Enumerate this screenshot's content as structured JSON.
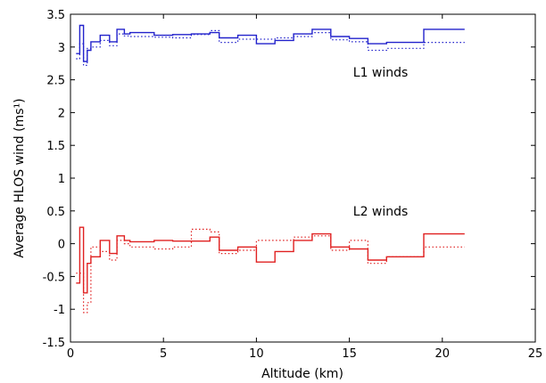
{
  "chart_data": {
    "type": "line",
    "xlabel": "Altitude (km)",
    "ylabel": "Average HLOS wind (ms¹)",
    "xlim": [
      0,
      25
    ],
    "ylim": [
      -1.5,
      3.5
    ],
    "xticks": [
      0,
      5,
      10,
      15,
      20,
      25
    ],
    "yticks": [
      -1.5,
      -1,
      -0.5,
      0,
      0.5,
      1,
      1.5,
      2,
      2.5,
      3,
      3.5
    ],
    "xtick_labels": [
      "0",
      "5",
      "10",
      "15",
      "20",
      "25"
    ],
    "ytick_labels": [
      "-1.5",
      "-1",
      "-0.5",
      "0",
      "0.5",
      "1",
      "1.5",
      "2",
      "2.5",
      "3",
      "3.5"
    ],
    "grid": false,
    "annotations": [
      {
        "text": "L1 winds",
        "x": 15.2,
        "y": 2.55
      },
      {
        "text": "L2 winds",
        "x": 15.2,
        "y": 0.43
      }
    ],
    "series": [
      {
        "group": "L1",
        "style": "solid",
        "color": "#2222cc",
        "x": [
          0.3,
          0.5,
          0.5,
          0.7,
          0.7,
          0.9,
          0.9,
          1.1,
          1.1,
          1.6,
          1.6,
          2.1,
          2.1,
          2.5,
          2.5,
          2.9,
          2.9,
          3.2,
          3.2,
          4.5,
          4.5,
          5.5,
          5.5,
          6.5,
          6.5,
          7.5,
          7.5,
          8.0,
          8.0,
          9.0,
          9.0,
          10.0,
          10.0,
          11.0,
          11.0,
          12.0,
          12.0,
          13.0,
          13.0,
          14.0,
          14.0,
          15.0,
          15.0,
          16.0,
          16.0,
          17.0,
          17.0,
          19.0,
          19.0,
          21.2
        ],
        "y": [
          2.9,
          2.9,
          3.33,
          3.33,
          2.78,
          2.78,
          2.95,
          2.95,
          3.08,
          3.08,
          3.18,
          3.18,
          3.08,
          3.08,
          3.27,
          3.27,
          3.2,
          3.2,
          3.22,
          3.22,
          3.18,
          3.18,
          3.19,
          3.19,
          3.2,
          3.2,
          3.22,
          3.22,
          3.14,
          3.14,
          3.18,
          3.18,
          3.05,
          3.05,
          3.1,
          3.1,
          3.2,
          3.2,
          3.27,
          3.27,
          3.16,
          3.16,
          3.13,
          3.13,
          3.05,
          3.05,
          3.07,
          3.07,
          3.27,
          3.27
        ]
      },
      {
        "group": "L1",
        "style": "dotted",
        "color": "#2222cc",
        "x": [
          0.3,
          0.5,
          0.5,
          0.7,
          0.7,
          0.9,
          0.9,
          1.1,
          1.1,
          1.6,
          1.6,
          2.1,
          2.1,
          2.5,
          2.5,
          2.9,
          2.9,
          3.2,
          3.2,
          4.5,
          4.5,
          5.5,
          5.5,
          6.5,
          6.5,
          7.5,
          7.5,
          8.0,
          8.0,
          9.0,
          9.0,
          10.0,
          10.0,
          11.0,
          11.0,
          12.0,
          12.0,
          13.0,
          13.0,
          14.0,
          14.0,
          15.0,
          15.0,
          16.0,
          16.0,
          17.0,
          17.0,
          19.0,
          19.0,
          21.2
        ],
        "y": [
          2.82,
          2.82,
          3.05,
          3.05,
          2.72,
          2.72,
          2.98,
          2.98,
          3.0,
          3.0,
          3.1,
          3.1,
          3.02,
          3.02,
          3.2,
          3.2,
          3.17,
          3.17,
          3.16,
          3.16,
          3.15,
          3.15,
          3.14,
          3.14,
          3.19,
          3.19,
          3.25,
          3.25,
          3.07,
          3.07,
          3.12,
          3.12,
          3.12,
          3.12,
          3.14,
          3.14,
          3.16,
          3.16,
          3.22,
          3.22,
          3.11,
          3.11,
          3.08,
          3.08,
          2.95,
          2.95,
          2.98,
          2.98,
          3.07,
          3.07
        ]
      },
      {
        "group": "L2",
        "style": "solid",
        "color": "#e02020",
        "x": [
          0.3,
          0.5,
          0.5,
          0.7,
          0.7,
          0.9,
          0.9,
          1.1,
          1.1,
          1.6,
          1.6,
          2.1,
          2.1,
          2.5,
          2.5,
          2.9,
          2.9,
          3.2,
          3.2,
          4.5,
          4.5,
          5.5,
          5.5,
          6.5,
          6.5,
          7.5,
          7.5,
          8.0,
          8.0,
          9.0,
          9.0,
          10.0,
          10.0,
          11.0,
          11.0,
          12.0,
          12.0,
          13.0,
          13.0,
          14.0,
          14.0,
          15.0,
          15.0,
          16.0,
          16.0,
          17.0,
          17.0,
          19.0,
          19.0,
          21.2
        ],
        "y": [
          -0.6,
          -0.6,
          0.25,
          0.25,
          -0.75,
          -0.75,
          -0.3,
          -0.3,
          -0.2,
          -0.2,
          0.05,
          0.05,
          -0.15,
          -0.15,
          0.12,
          0.12,
          0.05,
          0.05,
          0.03,
          0.03,
          0.05,
          0.05,
          0.04,
          0.04,
          0.04,
          0.04,
          0.1,
          0.1,
          -0.1,
          -0.1,
          -0.05,
          -0.05,
          -0.28,
          -0.28,
          -0.12,
          -0.12,
          0.05,
          0.05,
          0.15,
          0.15,
          -0.05,
          -0.05,
          -0.08,
          -0.08,
          -0.25,
          -0.25,
          -0.2,
          -0.2,
          0.15,
          0.15
        ]
      },
      {
        "group": "L2",
        "style": "dotted",
        "color": "#e02020",
        "x": [
          0.3,
          0.5,
          0.5,
          0.7,
          0.7,
          0.9,
          0.9,
          1.1,
          1.1,
          1.6,
          1.6,
          2.1,
          2.1,
          2.5,
          2.5,
          2.9,
          2.9,
          3.2,
          3.2,
          4.5,
          4.5,
          5.5,
          5.5,
          6.5,
          6.5,
          7.5,
          7.5,
          8.0,
          8.0,
          9.0,
          9.0,
          10.0,
          10.0,
          11.0,
          11.0,
          12.0,
          12.0,
          13.0,
          13.0,
          14.0,
          14.0,
          15.0,
          15.0,
          16.0,
          16.0,
          17.0,
          17.0,
          19.0,
          19.0,
          21.2
        ],
        "y": [
          -0.45,
          -0.45,
          -0.45,
          -0.45,
          -1.05,
          -1.05,
          -0.9,
          -0.9,
          -0.05,
          -0.05,
          -0.12,
          -0.12,
          -0.25,
          -0.25,
          0.05,
          0.05,
          0.0,
          0.0,
          -0.05,
          -0.05,
          -0.08,
          -0.08,
          -0.05,
          -0.05,
          0.22,
          0.22,
          0.18,
          0.18,
          -0.15,
          -0.15,
          -0.1,
          -0.1,
          0.05,
          0.05,
          0.05,
          0.05,
          0.1,
          0.1,
          0.12,
          0.12,
          -0.1,
          -0.1,
          0.05,
          0.05,
          -0.3,
          -0.3,
          -0.2,
          -0.2,
          -0.05,
          -0.05
        ]
      }
    ]
  }
}
